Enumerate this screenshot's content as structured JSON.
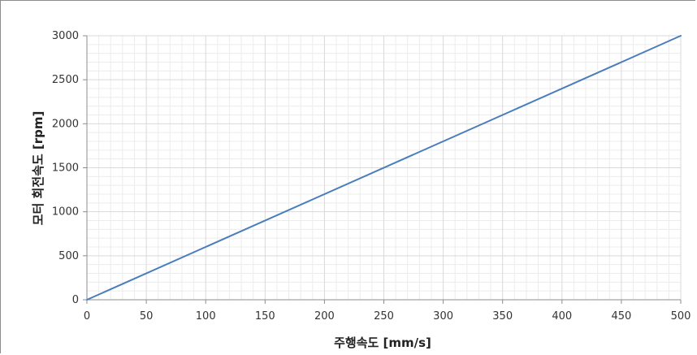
{
  "chart_data": {
    "type": "line",
    "title": "",
    "xlabel": "주행속도 [mm/s]",
    "ylabel": "모터 회전속도 [rpm]",
    "xlim": [
      0,
      500
    ],
    "ylim": [
      0,
      3000
    ],
    "x_ticks": [
      0,
      50,
      100,
      150,
      200,
      250,
      300,
      350,
      400,
      450,
      500
    ],
    "y_ticks": [
      0,
      500,
      1000,
      1500,
      2000,
      2500,
      3000
    ],
    "x_tick_labels": [
      "0",
      "50",
      "100",
      "150",
      "200",
      "250",
      "300",
      "350",
      "400",
      "450",
      "500"
    ],
    "y_tick_labels": [
      "0",
      "500",
      "1000",
      "1500",
      "2000",
      "2500",
      "3000"
    ],
    "grid": true,
    "minor_grid": true,
    "legend": "none",
    "colors": {
      "line": "#4a7ebb",
      "major_grid": "#d9d9d9",
      "minor_grid": "#ececec",
      "axis": "#8c8c8c"
    },
    "series": [
      {
        "x": [
          0,
          500
        ],
        "y": [
          0,
          3000
        ]
      }
    ]
  }
}
